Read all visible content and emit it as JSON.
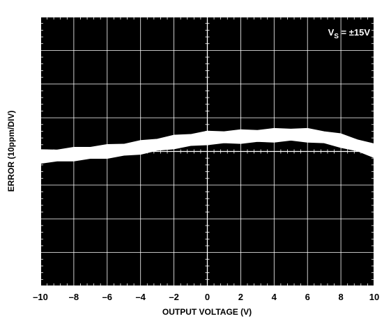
{
  "chart_data": {
    "type": "line",
    "xlabel": "OUTPUT VOLTAGE (V)",
    "ylabel": "ERROR (10ppm/DIV)",
    "xlim": [
      -10,
      10
    ],
    "ylim": [
      -4,
      4
    ],
    "x_ticks": [
      "–10",
      "–8",
      "–6",
      "–4",
      "–2",
      "0",
      "2",
      "4",
      "6",
      "8",
      "10"
    ],
    "x_divisions": 10,
    "y_divisions": 8,
    "grid": true,
    "minor_ticks_per_division": 5,
    "annotation": {
      "prefix": "V",
      "subscript": "S",
      "suffix": " = ±15V"
    },
    "series": [
      {
        "x": [
          -10,
          -9,
          -8,
          -7,
          -6,
          -5,
          -4,
          -3,
          -2,
          -1,
          0,
          1,
          2,
          3,
          4,
          5,
          6,
          7,
          8,
          9,
          10
        ],
        "y": [
          -0.15,
          -0.12,
          -0.08,
          -0.04,
          0.0,
          0.05,
          0.12,
          0.2,
          0.28,
          0.34,
          0.4,
          0.42,
          0.44,
          0.46,
          0.48,
          0.5,
          0.48,
          0.42,
          0.32,
          0.18,
          0.02
        ],
        "band_halfwidth": 0.18
      }
    ],
    "colors": {
      "background": "#000000",
      "grid": "#ffffff",
      "trace": "#ffffff",
      "text": "#000000"
    }
  }
}
